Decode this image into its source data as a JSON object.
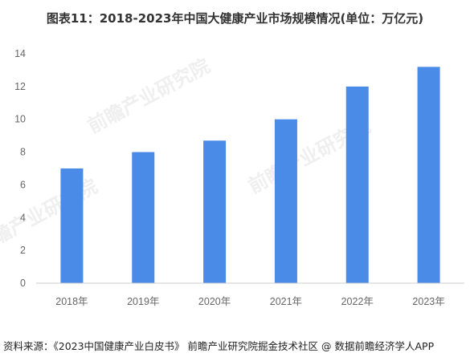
{
  "title": "图表11：2018-2023年中国大健康产业市场规模情况(单位：万亿元)",
  "source": "资料来源：《2023中国健康产业白皮书》 前瞻产业研究院掘金技术社区 @ 数据前瞻经济学人APP",
  "watermark": "前瞻产业研究院",
  "colors": {
    "bar": "#4a8be8",
    "axis": "#cccccc"
  },
  "chart_data": {
    "type": "bar",
    "categories": [
      "2018年",
      "2019年",
      "2020年",
      "2021年",
      "2022年",
      "2023年"
    ],
    "values": [
      7.0,
      8.0,
      8.7,
      10.0,
      12.0,
      13.2
    ],
    "title": "图表11：2018-2023年中国大健康产业市场规模情况(单位：万亿元)",
    "xlabel": "",
    "ylabel": "",
    "ylim": [
      0,
      14
    ],
    "yticks": [
      0,
      2,
      4,
      6,
      8,
      10,
      12,
      14
    ],
    "grid": false,
    "legend": "none"
  }
}
